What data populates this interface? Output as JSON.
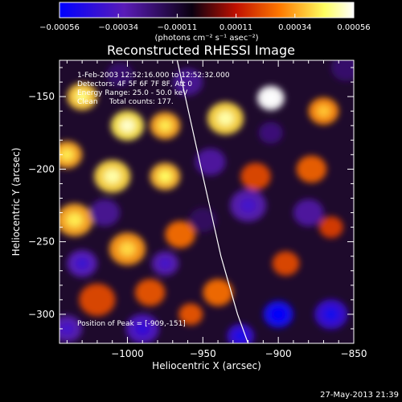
{
  "chart_data": {
    "type": "heatmap",
    "title": "Reconstructed RHESSI Image",
    "xlabel": "Heliocentric X (arcsec)",
    "ylabel": "Heliocentric Y (arcsec)",
    "xlim": [
      -1045,
      -850
    ],
    "ylim": [
      -320,
      -125
    ],
    "xticks": [
      -1000,
      -950,
      -900,
      -850
    ],
    "yticks": [
      -300,
      -250,
      -200,
      -150
    ],
    "colorbar": {
      "min": -0.00056,
      "max": 0.00056,
      "ticks": [
        "-0.00056",
        "-0.00034",
        "-0.00011",
        "0.00011",
        "0.00034",
        "0.00056"
      ],
      "unit_label": "(photons cm⁻² s⁻¹ asec⁻²)",
      "colors": [
        "#0000ff",
        "#5a1cb8",
        "#0a0010",
        "#c01000",
        "#ff7a00",
        "#ffff60",
        "#ffffff"
      ]
    },
    "annotations": {
      "time": "1-Feb-2003 12:52:16.000 to 12:52:32.000",
      "detectors": "Detectors: 4F 5F 6F 7F 8F, Att 0",
      "energy": "Energy Range: 25.0 - 50.0 keV",
      "clean": "Clean     Total counts: 177.",
      "peak": "Position of Peak = [-909,-151]"
    },
    "peak": {
      "x": -909,
      "y": -151
    },
    "limb_curve": [
      [
        -967,
        -125
      ],
      [
        -951,
        -200
      ],
      [
        -938,
        -260
      ],
      [
        -927,
        -300
      ],
      [
        -920,
        -320
      ]
    ],
    "sources": [
      {
        "x": -905,
        "y": -151,
        "v": 0.00056,
        "s": 9
      },
      {
        "x": -935,
        "y": -165,
        "v": 0.0004,
        "s": 12
      },
      {
        "x": -1000,
        "y": -170,
        "v": 0.00042,
        "s": 11
      },
      {
        "x": -975,
        "y": -170,
        "v": 0.00034,
        "s": 10
      },
      {
        "x": -1030,
        "y": -150,
        "v": 0.00038,
        "s": 10
      },
      {
        "x": -1040,
        "y": -190,
        "v": 0.00034,
        "s": 10
      },
      {
        "x": -975,
        "y": -205,
        "v": 0.00036,
        "s": 10
      },
      {
        "x": -1010,
        "y": -205,
        "v": 0.0004,
        "s": 12
      },
      {
        "x": -1035,
        "y": -235,
        "v": 0.00034,
        "s": 12
      },
      {
        "x": -1000,
        "y": -255,
        "v": 0.00032,
        "s": 12
      },
      {
        "x": -965,
        "y": -245,
        "v": 0.00026,
        "s": 10
      },
      {
        "x": -870,
        "y": -160,
        "v": 0.0003,
        "s": 10
      },
      {
        "x": -878,
        "y": -200,
        "v": 0.00024,
        "s": 10
      },
      {
        "x": -915,
        "y": -205,
        "v": 0.0002,
        "s": 10
      },
      {
        "x": -895,
        "y": -265,
        "v": 0.0002,
        "s": 9
      },
      {
        "x": -865,
        "y": -240,
        "v": 0.00018,
        "s": 8
      },
      {
        "x": -940,
        "y": -285,
        "v": 0.00026,
        "s": 10
      },
      {
        "x": -985,
        "y": -285,
        "v": 0.00022,
        "s": 10
      },
      {
        "x": -1020,
        "y": -290,
        "v": 0.0002,
        "s": 12
      },
      {
        "x": -958,
        "y": -300,
        "v": 0.00022,
        "s": 8
      },
      {
        "x": -920,
        "y": -225,
        "v": -0.0003,
        "s": 12
      },
      {
        "x": -945,
        "y": -195,
        "v": -0.00028,
        "s": 10
      },
      {
        "x": -900,
        "y": -300,
        "v": -0.0005,
        "s": 10
      },
      {
        "x": -865,
        "y": -300,
        "v": -0.0004,
        "s": 11
      },
      {
        "x": -925,
        "y": -315,
        "v": -0.0004,
        "s": 9
      },
      {
        "x": -1030,
        "y": -265,
        "v": -0.00032,
        "s": 10
      },
      {
        "x": -1015,
        "y": -230,
        "v": -0.00026,
        "s": 10
      },
      {
        "x": -1040,
        "y": -310,
        "v": -0.0003,
        "s": 10
      },
      {
        "x": -990,
        "y": -310,
        "v": -0.00034,
        "s": 11
      },
      {
        "x": -975,
        "y": -265,
        "v": -0.0003,
        "s": 9
      },
      {
        "x": -880,
        "y": -230,
        "v": -0.00028,
        "s": 10
      },
      {
        "x": -905,
        "y": -175,
        "v": -0.00022,
        "s": 8
      },
      {
        "x": -855,
        "y": -130,
        "v": -0.0002,
        "s": 10
      },
      {
        "x": -960,
        "y": -140,
        "v": -0.00026,
        "s": 10
      },
      {
        "x": -1005,
        "y": -135,
        "v": -0.0002,
        "s": 9
      },
      {
        "x": -950,
        "y": -235,
        "v": -0.00018,
        "s": 9
      }
    ]
  },
  "footer": {
    "timestamp": "27-May-2013 21:39"
  }
}
